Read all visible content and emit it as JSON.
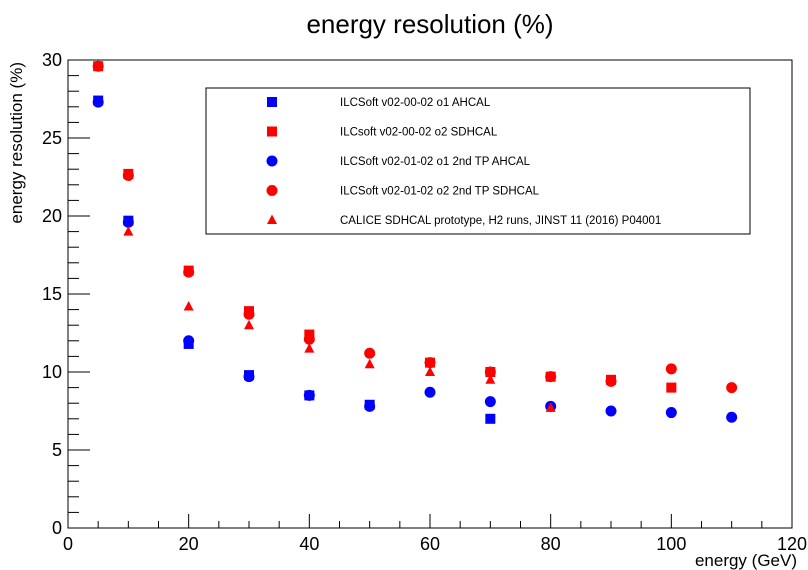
{
  "chart_data": {
    "type": "scatter",
    "title": "energy resolution (%)",
    "xlabel": "energy (GeV)",
    "ylabel": "energy resolution (%)",
    "xlim": [
      0,
      120
    ],
    "ylim": [
      0,
      30
    ],
    "x_ticks": [
      0,
      20,
      40,
      60,
      80,
      100,
      120
    ],
    "y_ticks": [
      0,
      5,
      10,
      15,
      20,
      25,
      30
    ],
    "grid": false,
    "legend_position": "top-right",
    "series": [
      {
        "name": "ILCSoft v02-00-02 o1 AHCAL",
        "marker": "square",
        "color": "#0000ff",
        "points": [
          [
            5,
            27.4
          ],
          [
            10,
            19.7
          ],
          [
            20,
            11.8
          ],
          [
            30,
            9.8
          ],
          [
            40,
            8.5
          ],
          [
            50,
            7.9
          ],
          [
            70,
            7.0
          ]
        ]
      },
      {
        "name": "ILCsoft v02-00-02 o2 SDHCAL",
        "marker": "square",
        "color": "#ff0000",
        "points": [
          [
            5,
            29.6
          ],
          [
            10,
            22.7
          ],
          [
            20,
            16.5
          ],
          [
            30,
            13.9
          ],
          [
            40,
            12.4
          ],
          [
            60,
            10.6
          ],
          [
            70,
            10.0
          ],
          [
            80,
            9.7
          ],
          [
            90,
            9.5
          ],
          [
            100,
            9.0
          ]
        ]
      },
      {
        "name": "ILCSoft v02-01-02 o1 2nd TP AHCAL",
        "marker": "circle",
        "color": "#0000ff",
        "points": [
          [
            5,
            27.3
          ],
          [
            10,
            19.6
          ],
          [
            20,
            12.0
          ],
          [
            30,
            9.7
          ],
          [
            40,
            8.5
          ],
          [
            50,
            7.8
          ],
          [
            60,
            8.7
          ],
          [
            70,
            8.1
          ],
          [
            80,
            7.8
          ],
          [
            90,
            7.5
          ],
          [
            100,
            7.4
          ],
          [
            110,
            7.1
          ]
        ]
      },
      {
        "name": "ILCSoft v02-01-02 o2 2nd TP SDHCAL",
        "marker": "circle",
        "color": "#ff0000",
        "points": [
          [
            5,
            29.6
          ],
          [
            10,
            22.6
          ],
          [
            20,
            16.4
          ],
          [
            30,
            13.7
          ],
          [
            40,
            12.1
          ],
          [
            50,
            11.2
          ],
          [
            60,
            10.6
          ],
          [
            70,
            10.0
          ],
          [
            80,
            9.7
          ],
          [
            90,
            9.4
          ],
          [
            100,
            10.2
          ],
          [
            110,
            9.0
          ]
        ]
      },
      {
        "name": "CALICE SDHCAL prototype, H2 runs, JINST 11 (2016) P04001",
        "marker": "triangle",
        "color": "#ff0000",
        "points": [
          [
            10,
            19.0
          ],
          [
            20,
            14.2
          ],
          [
            30,
            13.0
          ],
          [
            40,
            11.5
          ],
          [
            50,
            10.5
          ],
          [
            60,
            10.0
          ],
          [
            70,
            9.5
          ],
          [
            80,
            7.7
          ]
        ]
      }
    ]
  }
}
